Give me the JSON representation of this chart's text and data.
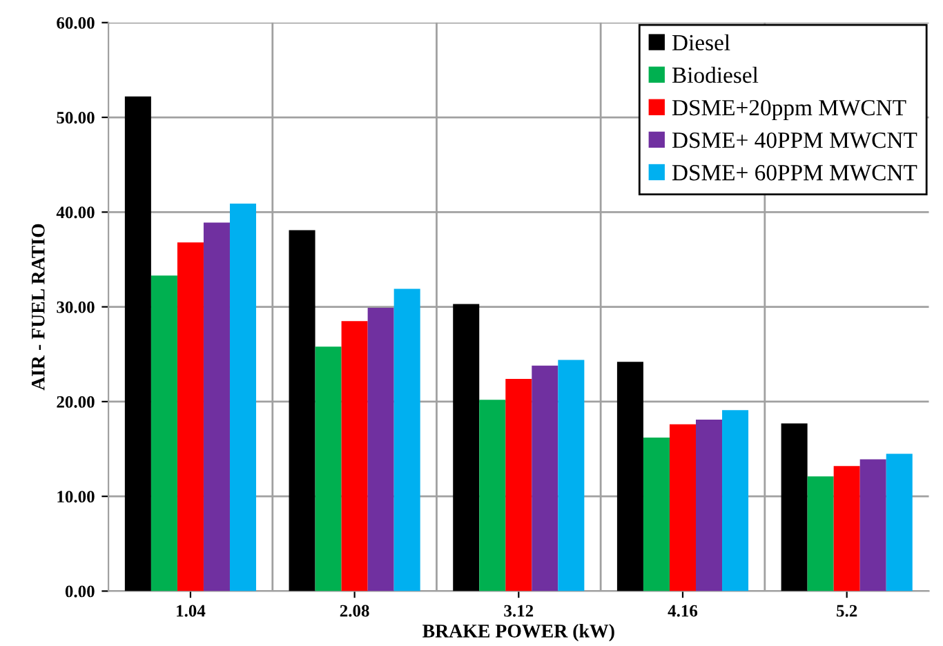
{
  "chart_data": {
    "type": "bar",
    "xlabel": "BRAKE POWER (kW)",
    "ylabel": "AIR - FUEL RATIO",
    "categories": [
      "1.04",
      "2.08",
      "3.12",
      "4.16",
      "5.2"
    ],
    "series": [
      {
        "name": "Diesel",
        "color": "#000000",
        "values": [
          52.2,
          38.1,
          30.3,
          24.2,
          17.7
        ]
      },
      {
        "name": "Biodiesel",
        "color": "#00b050",
        "values": [
          33.3,
          25.8,
          20.2,
          16.2,
          12.1
        ]
      },
      {
        "name": "DSME+20ppm MWCNT",
        "color": "#ff0000",
        "values": [
          36.8,
          28.5,
          22.4,
          17.6,
          13.2
        ]
      },
      {
        "name": "DSME+ 40PPM MWCNT",
        "color": "#7030a0",
        "values": [
          38.9,
          29.9,
          23.8,
          18.1,
          13.9
        ]
      },
      {
        "name": "DSME+ 60PPM MWCNT",
        "color": "#00b0f0",
        "values": [
          40.9,
          31.9,
          24.4,
          19.1,
          14.5
        ]
      }
    ],
    "ylim": [
      0,
      60
    ],
    "yticks": [
      {
        "value": 0,
        "label": "0.00"
      },
      {
        "value": 10,
        "label": "10.00"
      },
      {
        "value": 20,
        "label": "20.00"
      },
      {
        "value": 30,
        "label": "30.00"
      },
      {
        "value": 40,
        "label": "40.00"
      },
      {
        "value": 50,
        "label": "50.00"
      },
      {
        "value": 60,
        "label": "60.00"
      }
    ],
    "grid": true,
    "legend": "top right"
  }
}
